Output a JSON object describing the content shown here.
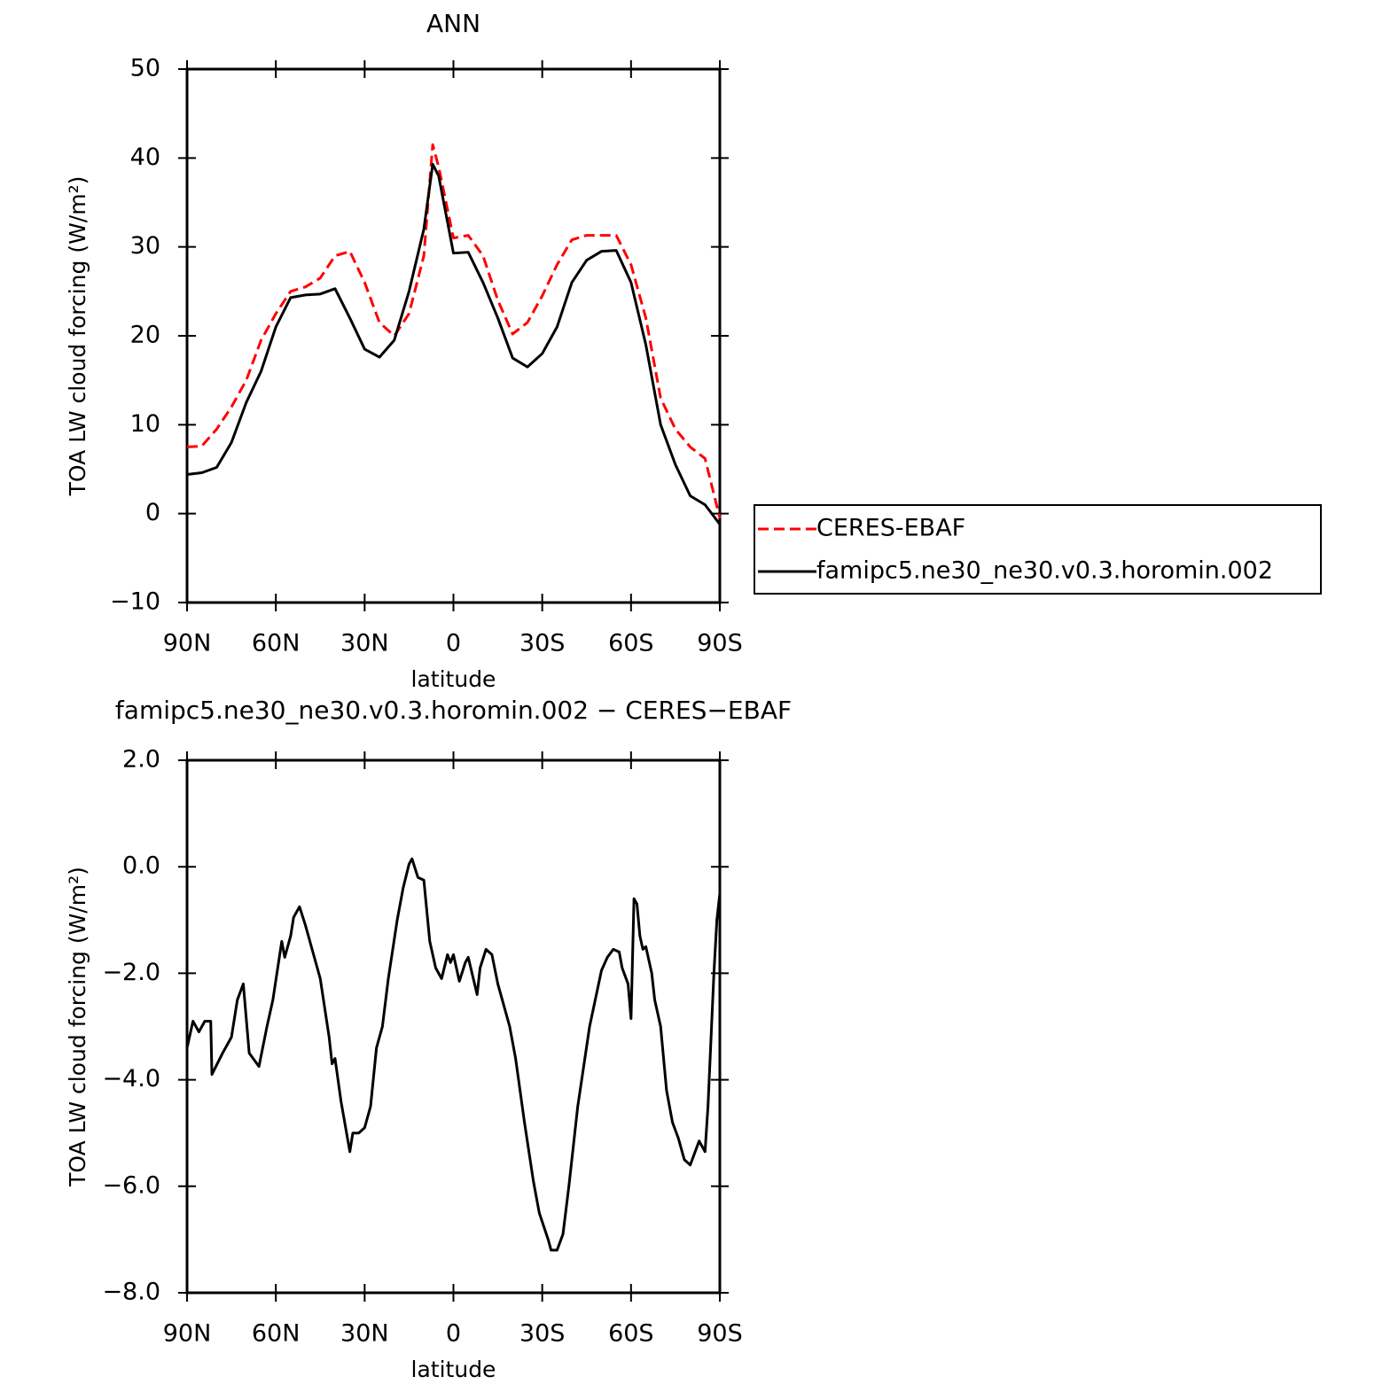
{
  "chart_data": [
    {
      "type": "line",
      "title": "ANN",
      "xlabel": "latitude",
      "ylabel": "TOA LW cloud forcing (W/m²)",
      "x": [
        90,
        85,
        80,
        75,
        70,
        65,
        60,
        55,
        50,
        45,
        40,
        35,
        30,
        25,
        20,
        15,
        10,
        7,
        5,
        0,
        -5,
        -10,
        -15,
        -20,
        -25,
        -30,
        -35,
        -40,
        -45,
        -50,
        -55,
        -60,
        -65,
        -70,
        -75,
        -80,
        -85,
        -90
      ],
      "series": [
        {
          "name": "CERES-EBAF",
          "color": "#ff0000",
          "dashed": true,
          "values": [
            7.5,
            7.6,
            9.5,
            12,
            15,
            19.5,
            22.5,
            25,
            25.5,
            26.5,
            29,
            29.5,
            26,
            21.5,
            20,
            22.5,
            29,
            41.5,
            39,
            31,
            31.3,
            29,
            24,
            20.2,
            21.5,
            24.5,
            28,
            30.8,
            31.3,
            31.3,
            31.3,
            28,
            22,
            13,
            9.5,
            7.5,
            6.2,
            -0.5
          ]
        },
        {
          "name": "famipc5.ne30_ne30.v0.3.horomin.002",
          "color": "#000000",
          "dashed": false,
          "values": [
            4.4,
            4.6,
            5.2,
            8,
            12.5,
            16,
            21,
            24.3,
            24.6,
            24.7,
            25.3,
            22,
            18.5,
            17.6,
            19.5,
            25,
            32,
            39.3,
            38,
            29.3,
            29.4,
            26,
            22,
            17.5,
            16.5,
            18,
            21,
            26,
            28.5,
            29.5,
            29.6,
            26,
            19,
            10,
            5.5,
            2,
            1,
            -1.2
          ]
        }
      ],
      "xlim": [
        90,
        -90
      ],
      "xticks": [
        {
          "value": 90,
          "label": "90N"
        },
        {
          "value": 60,
          "label": "60N"
        },
        {
          "value": 30,
          "label": "30N"
        },
        0,
        {
          "value": -30,
          "label": "30S"
        },
        {
          "value": -60,
          "label": "60S"
        },
        {
          "value": -90,
          "label": "90S"
        }
      ],
      "ylim": [
        -10,
        50
      ],
      "yticks": [
        {
          "value": -10,
          "label": "−10"
        },
        0,
        10,
        20,
        30,
        40,
        50
      ],
      "legend": "right"
    },
    {
      "type": "line",
      "title": "famipc5.ne30_ne30.v0.3.horomin.002 − CERES−EBAF",
      "xlabel": "latitude",
      "ylabel": "TOA LW cloud forcing (W/m²)",
      "x": [
        90,
        88,
        86,
        84,
        82,
        81.6,
        78,
        75,
        73,
        71,
        69,
        65.7,
        63,
        61,
        58,
        57,
        55,
        54,
        52,
        50,
        48,
        45,
        42,
        41,
        40,
        38,
        35,
        34,
        32,
        30,
        28,
        26,
        24,
        22,
        19,
        17,
        15,
        14,
        12,
        10,
        8,
        6,
        4,
        2,
        1,
        0,
        -2,
        -4,
        -5,
        -8,
        -9,
        -11,
        -13,
        -15,
        -17,
        -19,
        -21,
        -24,
        -27,
        -29,
        -32,
        -33,
        -35,
        -37,
        -39,
        -42,
        -46,
        -50,
        -52,
        -54,
        -56,
        -57,
        -59,
        -60,
        -61,
        -62,
        -63,
        -64,
        -65,
        -67,
        -68,
        -70,
        -72,
        -74,
        -76,
        -78,
        -80,
        -81,
        -83,
        -85,
        -86,
        -88,
        -89,
        -90
      ],
      "series": [
        {
          "color": "#000000",
          "dashed": false,
          "values": [
            -3.4,
            -2.9,
            -3.1,
            -2.9,
            -2.9,
            -3.9,
            -3.5,
            -3.2,
            -2.5,
            -2.2,
            -3.5,
            -3.75,
            -3.0,
            -2.5,
            -1.4,
            -1.7,
            -1.3,
            -0.95,
            -0.75,
            -1.1,
            -1.5,
            -2.1,
            -3.2,
            -3.7,
            -3.6,
            -4.4,
            -5.35,
            -5.0,
            -5.0,
            -4.9,
            -4.5,
            -3.4,
            -3.0,
            -2.1,
            -1.0,
            -0.4,
            0.05,
            0.15,
            -0.2,
            -0.25,
            -1.4,
            -1.9,
            -2.1,
            -1.65,
            -1.8,
            -1.65,
            -2.15,
            -1.8,
            -1.7,
            -2.4,
            -1.9,
            -1.55,
            -1.65,
            -2.2,
            -2.6,
            -3.0,
            -3.6,
            -4.8,
            -5.9,
            -6.5,
            -7.0,
            -7.2,
            -7.2,
            -6.9,
            -6.0,
            -4.5,
            -3.0,
            -1.95,
            -1.7,
            -1.55,
            -1.6,
            -1.9,
            -2.2,
            -2.85,
            -0.6,
            -0.7,
            -1.3,
            -1.55,
            -1.5,
            -2.0,
            -2.5,
            -3.0,
            -4.2,
            -4.8,
            -5.1,
            -5.5,
            -5.6,
            -5.45,
            -5.15,
            -5.35,
            -4.5,
            -2.0,
            -1.0,
            -0.5
          ]
        }
      ],
      "xlim": [
        90,
        -90
      ],
      "xticks": [
        {
          "value": 90,
          "label": "90N"
        },
        {
          "value": 60,
          "label": "60N"
        },
        {
          "value": 30,
          "label": "30N"
        },
        0,
        {
          "value": -30,
          "label": "30S"
        },
        {
          "value": -60,
          "label": "60S"
        },
        {
          "value": -90,
          "label": "90S"
        }
      ],
      "ylim": [
        -8,
        2
      ],
      "yticks": [
        {
          "value": -8,
          "label": "−8.0"
        },
        {
          "value": -6,
          "label": "−6.0"
        },
        {
          "value": -4,
          "label": "−4.0"
        },
        {
          "value": -2,
          "label": "−2.0"
        },
        {
          "value": 0,
          "label": "0.0"
        },
        {
          "value": 2,
          "label": "2.0"
        }
      ]
    }
  ]
}
